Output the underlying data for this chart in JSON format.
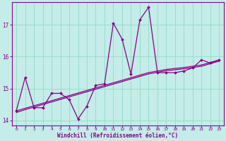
{
  "xlabel": "Windchill (Refroidissement éolien,°C)",
  "bg_color": "#c4ece8",
  "line_color": "#880088",
  "grid_color": "#99ddcc",
  "x_values": [
    0,
    1,
    2,
    3,
    4,
    5,
    6,
    7,
    8,
    9,
    10,
    11,
    12,
    13,
    14,
    15,
    16,
    17,
    18,
    19,
    20,
    21,
    22,
    23
  ],
  "y_main": [
    14.3,
    15.35,
    14.4,
    14.4,
    14.85,
    14.85,
    14.65,
    14.05,
    14.45,
    15.1,
    15.15,
    17.05,
    16.55,
    15.45,
    17.15,
    17.55,
    15.5,
    15.5,
    15.5,
    15.55,
    15.65,
    15.9,
    15.8,
    15.9
  ],
  "y_trend_a": [
    14.3,
    14.38,
    14.46,
    14.54,
    14.62,
    14.7,
    14.78,
    14.86,
    14.94,
    15.02,
    15.1,
    15.18,
    15.26,
    15.34,
    15.42,
    15.5,
    15.55,
    15.6,
    15.63,
    15.66,
    15.7,
    15.74,
    15.82,
    15.9
  ],
  "y_trend_b": [
    14.25,
    14.34,
    14.42,
    14.5,
    14.58,
    14.66,
    14.74,
    14.82,
    14.9,
    14.98,
    15.06,
    15.14,
    15.22,
    15.3,
    15.38,
    15.46,
    15.51,
    15.56,
    15.59,
    15.62,
    15.66,
    15.7,
    15.78,
    15.86
  ],
  "ylim": [
    13.85,
    17.7
  ],
  "yticks": [
    14,
    15,
    16,
    17
  ],
  "xlim": [
    -0.5,
    23.5
  ],
  "xticks": [
    0,
    1,
    2,
    3,
    4,
    5,
    6,
    7,
    8,
    9,
    10,
    11,
    12,
    13,
    14,
    15,
    16,
    17,
    18,
    19,
    20,
    21,
    22,
    23
  ]
}
